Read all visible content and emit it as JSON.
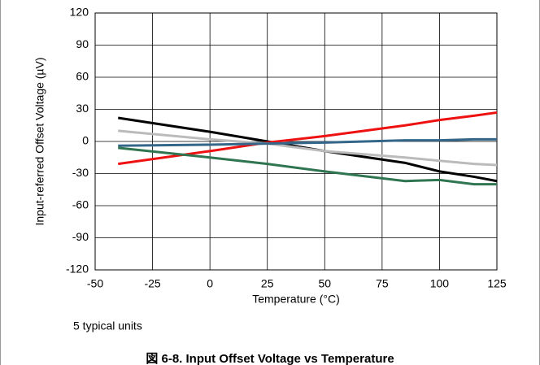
{
  "chart_data": {
    "type": "line",
    "x_label": "Temperature (°C)",
    "y_label": "Input-referred Offset Voltage (µV)",
    "note": "5 typical units",
    "caption": "図 6-8. Input Offset Voltage vs Temperature",
    "x": [
      -40,
      0,
      25,
      50,
      85,
      100,
      115,
      125
    ],
    "series": [
      {
        "color": "#000000",
        "values": [
          22,
          9,
          0,
          -9,
          -20,
          -28,
          -33,
          -37
        ]
      },
      {
        "color": "#ee1111",
        "values": [
          -21,
          -9,
          -1,
          5,
          15,
          20,
          24,
          27
        ]
      },
      {
        "color": "#bbbbbb",
        "values": [
          10,
          2,
          -2,
          -9,
          -15,
          -18,
          -21,
          -22
        ]
      },
      {
        "color": "#336688",
        "values": [
          -4,
          -3,
          -2,
          -1,
          1,
          1,
          2,
          2
        ]
      },
      {
        "color": "#2e7550",
        "values": [
          -6,
          -15,
          -21,
          -28,
          -37,
          -36,
          -40,
          -40
        ]
      }
    ],
    "xlim": [
      -50,
      125
    ],
    "xticks": [
      -50,
      -25,
      0,
      25,
      50,
      75,
      100,
      125
    ],
    "ylim": [
      -120,
      120
    ],
    "yticks": [
      -120,
      -90,
      -60,
      -30,
      0,
      30,
      60,
      90,
      120
    ],
    "grid": true
  }
}
